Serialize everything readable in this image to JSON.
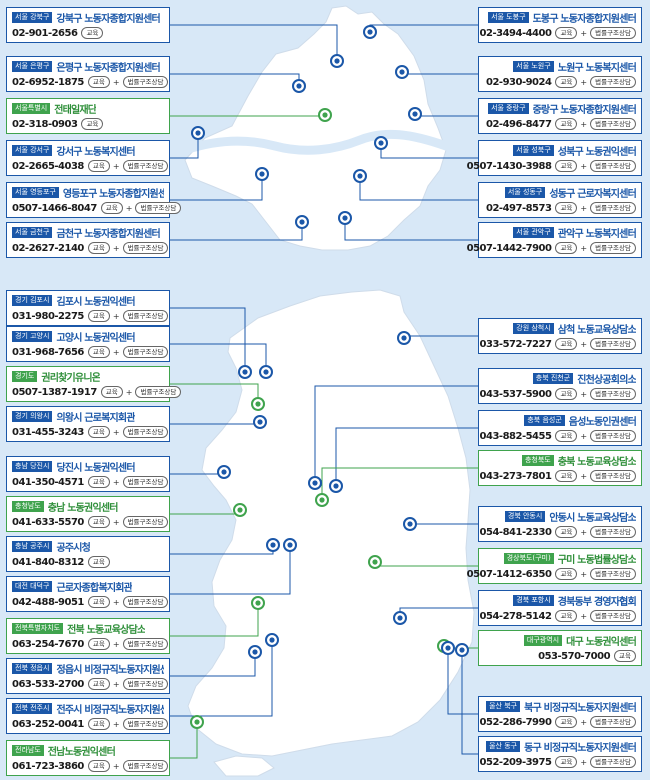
{
  "colors": {
    "seoul_accent": "#1b57a8",
    "green_accent": "#3fa34d",
    "map_fill": "#ffffff",
    "background": "#d8e8f7"
  },
  "badges": {
    "edu": "교육",
    "legal": "법률구조상담",
    "plus": "+"
  },
  "marker_icon": "location-circle-icon",
  "seoul_centers": [
    {
      "region": "서울 강북구",
      "name": "강북구 노동자종합지원센터",
      "phone": "02-901-2656",
      "services": [
        "edu"
      ],
      "side": "left",
      "color": "blue"
    },
    {
      "region": "서울 은평구",
      "name": "은평구 노동자종합지원센터",
      "phone": "02-6952-1875",
      "services": [
        "edu",
        "legal"
      ],
      "side": "left",
      "color": "blue"
    },
    {
      "region": "서울특별시",
      "name": "전태일재단",
      "phone": "02-318-0903",
      "services": [
        "edu"
      ],
      "side": "left",
      "color": "green"
    },
    {
      "region": "서울 강서구",
      "name": "강서구 노동복지센터",
      "phone": "02-2665-4038",
      "services": [
        "edu",
        "legal"
      ],
      "side": "left",
      "color": "blue"
    },
    {
      "region": "서울 영등포구",
      "name": "영등포구 노동자종합지원센터",
      "phone": "0507-1466-8047",
      "services": [
        "edu",
        "legal"
      ],
      "side": "left",
      "color": "blue"
    },
    {
      "region": "서울 금천구",
      "name": "금천구 노동자종합지원센터",
      "phone": "02-2627-2140",
      "services": [
        "edu",
        "legal"
      ],
      "side": "left",
      "color": "blue"
    },
    {
      "region": "서울 도봉구",
      "name": "도봉구 노동자종합지원센터",
      "phone": "02-3494-4400",
      "services": [
        "edu",
        "legal"
      ],
      "side": "right",
      "color": "blue"
    },
    {
      "region": "서울 노원구",
      "name": "노원구 노동복지센터",
      "phone": "02-930-9024",
      "services": [
        "edu",
        "legal"
      ],
      "side": "right",
      "color": "blue"
    },
    {
      "region": "서울 중랑구",
      "name": "중랑구 노동자종합지원센터",
      "phone": "02-496-8477",
      "services": [
        "edu",
        "legal"
      ],
      "side": "right",
      "color": "blue"
    },
    {
      "region": "서울 성북구",
      "name": "성북구 노동권익센터",
      "phone": "0507-1430-3988",
      "services": [
        "edu",
        "legal"
      ],
      "side": "right",
      "color": "blue"
    },
    {
      "region": "서울 성동구",
      "name": "성동구 근로자복지센터",
      "phone": "02-497-8573",
      "services": [
        "edu",
        "legal"
      ],
      "side": "right",
      "color": "blue"
    },
    {
      "region": "서울 관악구",
      "name": "관악구 노동복지센터",
      "phone": "0507-1442-7900",
      "services": [
        "edu",
        "legal"
      ],
      "side": "right",
      "color": "blue"
    }
  ],
  "national_centers": [
    {
      "region": "경기 김포시",
      "name": "김포시 노동권익센터",
      "phone": "031-980-2275",
      "services": [
        "edu",
        "legal"
      ],
      "side": "left",
      "color": "blue"
    },
    {
      "region": "경기 고양시",
      "name": "고양시 노동권익센터",
      "phone": "031-968-7656",
      "services": [
        "edu",
        "legal"
      ],
      "side": "left",
      "color": "blue"
    },
    {
      "region": "경기도",
      "name": "권리찾기유니온",
      "phone": "0507-1387-1917",
      "services": [
        "edu",
        "legal"
      ],
      "side": "left",
      "color": "green"
    },
    {
      "region": "경기 의왕시",
      "name": "의왕시 근로복지회관",
      "phone": "031-455-3243",
      "services": [
        "edu",
        "legal"
      ],
      "side": "left",
      "color": "blue"
    },
    {
      "region": "충남 당진시",
      "name": "당진시 노동권익센터",
      "phone": "041-350-4571",
      "services": [
        "edu",
        "legal"
      ],
      "side": "left",
      "color": "blue"
    },
    {
      "region": "충청남도",
      "name": "충남 노동권익센터",
      "phone": "041-633-5570",
      "services": [
        "edu",
        "legal"
      ],
      "side": "left",
      "color": "green"
    },
    {
      "region": "충남 공주시",
      "name": "공주시청",
      "phone": "041-840-8312",
      "services": [
        "edu"
      ],
      "side": "left",
      "color": "blue"
    },
    {
      "region": "대전 대덕구",
      "name": "근로자종합복지회관",
      "phone": "042-488-9051",
      "services": [
        "edu",
        "legal"
      ],
      "side": "left",
      "color": "blue"
    },
    {
      "region": "전북특별자치도",
      "name": "전북 노동교육상담소",
      "phone": "063-254-7670",
      "services": [
        "edu",
        "legal"
      ],
      "side": "left",
      "color": "green"
    },
    {
      "region": "전북 정읍시",
      "name": "정읍시 비정규직노동자지원센터",
      "phone": "063-533-2700",
      "services": [
        "edu",
        "legal"
      ],
      "side": "left",
      "color": "blue"
    },
    {
      "region": "전북 전주시",
      "name": "전주시 비정규직노동자지원센터",
      "phone": "063-252-0041",
      "services": [
        "edu",
        "legal"
      ],
      "side": "left",
      "color": "blue"
    },
    {
      "region": "전라남도",
      "name": "전남노동권익센터",
      "phone": "061-723-3860",
      "services": [
        "edu",
        "legal"
      ],
      "side": "left",
      "color": "green"
    },
    {
      "region": "강원 삼척시",
      "name": "삼척 노동교육상담소",
      "phone": "033-572-7227",
      "services": [
        "edu",
        "legal"
      ],
      "side": "right",
      "color": "blue"
    },
    {
      "region": "충북 진천군",
      "name": "진천상공회의소",
      "phone": "043-537-5900",
      "services": [
        "edu",
        "legal"
      ],
      "side": "right",
      "color": "blue"
    },
    {
      "region": "충북 음성군",
      "name": "음성노동인권센터",
      "phone": "043-882-5455",
      "services": [
        "edu",
        "legal"
      ],
      "side": "right",
      "color": "blue"
    },
    {
      "region": "충청북도",
      "name": "충북 노동교육상담소",
      "phone": "043-273-7801",
      "services": [
        "edu",
        "legal"
      ],
      "side": "right",
      "color": "green"
    },
    {
      "region": "경북 안동시",
      "name": "안동시 노동교육상담소",
      "phone": "054-841-2330",
      "services": [
        "edu",
        "legal"
      ],
      "side": "right",
      "color": "blue"
    },
    {
      "region": "경상북도(구미)",
      "name": "구미 노동법률상담소",
      "phone": "0507-1412-6350",
      "services": [
        "edu",
        "legal"
      ],
      "side": "right",
      "color": "green"
    },
    {
      "region": "경북 포항시",
      "name": "경북동부 경영자협회",
      "phone": "054-278-5142",
      "services": [
        "edu",
        "legal"
      ],
      "side": "right",
      "color": "blue"
    },
    {
      "region": "대구광역시",
      "name": "대구 노동권익센터",
      "phone": "053-570-7000",
      "services": [
        "edu"
      ],
      "side": "right",
      "color": "green"
    },
    {
      "region": "울산 북구",
      "name": "북구 비정규직노동자지원센터",
      "phone": "052-286-7990",
      "services": [
        "edu",
        "legal"
      ],
      "side": "right",
      "color": "blue"
    },
    {
      "region": "울산 동구",
      "name": "동구 비정규직노동자지원센터",
      "phone": "052-209-3975",
      "services": [
        "edu",
        "legal"
      ],
      "side": "right",
      "color": "blue"
    }
  ]
}
